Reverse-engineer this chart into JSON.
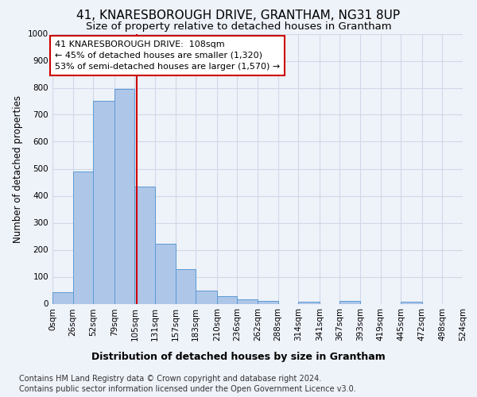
{
  "title": "41, KNARESBOROUGH DRIVE, GRANTHAM, NG31 8UP",
  "subtitle": "Size of property relative to detached houses in Grantham",
  "xlabel": "Distribution of detached houses by size in Grantham",
  "ylabel": "Number of detached properties",
  "bin_edges": [
    0,
    26,
    52,
    79,
    105,
    131,
    157,
    183,
    210,
    236,
    262,
    288,
    314,
    341,
    367,
    393,
    419,
    445,
    472,
    498,
    524
  ],
  "bar_heights": [
    42,
    490,
    750,
    795,
    435,
    222,
    128,
    50,
    27,
    15,
    10,
    0,
    6,
    0,
    10,
    0,
    0,
    8,
    0,
    0
  ],
  "bar_color": "#aec6e8",
  "bar_edge_color": "#5b9bd5",
  "grid_color": "#d0d8e8",
  "property_line_x": 108,
  "property_line_color": "#cc0000",
  "annotation_text": "41 KNARESBOROUGH DRIVE:  108sqm\n← 45% of detached houses are smaller (1,320)\n53% of semi-detached houses are larger (1,570) →",
  "annotation_box_color": "#ffffff",
  "annotation_box_edge": "#cc0000",
  "ylim": [
    0,
    1000
  ],
  "yticks": [
    0,
    100,
    200,
    300,
    400,
    500,
    600,
    700,
    800,
    900,
    1000
  ],
  "footer_line1": "Contains HM Land Registry data © Crown copyright and database right 2024.",
  "footer_line2": "Contains public sector information licensed under the Open Government Licence v3.0.",
  "bg_color": "#eef2f9",
  "title_fontsize": 11,
  "subtitle_fontsize": 9.5,
  "xlabel_fontsize": 9,
  "ylabel_fontsize": 8.5,
  "tick_fontsize": 7.5,
  "annotation_fontsize": 8,
  "footer_fontsize": 7
}
